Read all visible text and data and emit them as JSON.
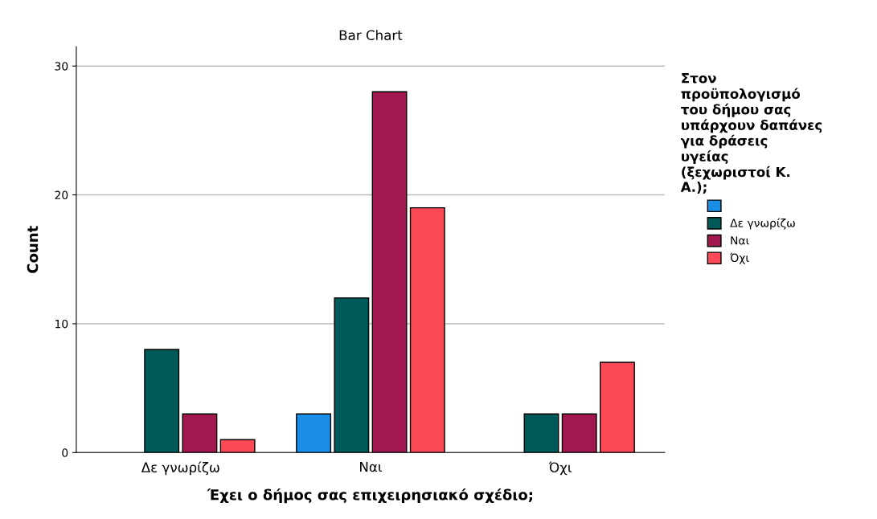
{
  "chart_data": {
    "type": "bar",
    "title": "Bar Chart",
    "xlabel": "Έχει ο δήμος σας επιχειρησιακό σχέδιο;",
    "ylabel": "Count",
    "legend_title": "Στον προϋπολογισμό του δήμου σας υπάρχουν δαπάνες για δράσεις υγείας (ξεχωριστοί Κ. Α.);",
    "categories": [
      "Δε γνωρίζω",
      "Ναι",
      "Όχι"
    ],
    "series": [
      {
        "color": "#1a8ee6",
        "values": [
          null,
          3,
          null
        ]
      },
      {
        "name": "Δε γνωρίζω",
        "color": "#005959",
        "values": [
          8,
          12,
          3
        ]
      },
      {
        "name": "Ναι",
        "color": "#a1184f",
        "values": [
          3,
          28,
          3
        ]
      },
      {
        "name": "Όχι",
        "color": "#fb4a56",
        "values": [
          1,
          19,
          7
        ]
      }
    ],
    "ylim": [
      0,
      31.5
    ],
    "yticks": [
      0,
      10,
      20,
      30
    ],
    "grid": "y",
    "legend": "right"
  }
}
